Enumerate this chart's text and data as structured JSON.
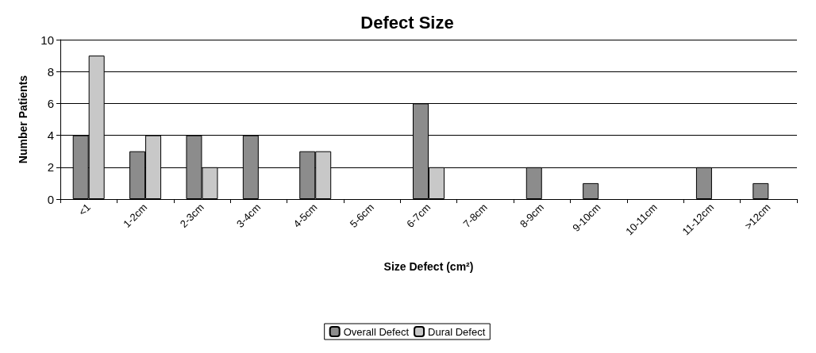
{
  "chart_data": {
    "type": "bar",
    "title": "Defect Size",
    "xlabel": "Size Defect (cm²)",
    "ylabel": "Number Patients",
    "categories": [
      "<1",
      "1-2cm",
      "2-3cm",
      "3-4cm",
      "4-5cm",
      "5-6cm",
      "6-7cm",
      "7-8cm",
      "8-9cm",
      "9-10cm",
      "10-11cm",
      "11-12cm",
      ">12cm"
    ],
    "series": [
      {
        "name": "Overall Defect",
        "color": "#8c8c8c",
        "values": [
          4,
          3,
          4,
          4,
          3,
          null,
          6,
          null,
          2,
          1,
          null,
          2,
          1
        ]
      },
      {
        "name": "Dural Defect",
        "color": "#c8c8c8",
        "values": [
          9,
          4,
          2,
          null,
          3,
          null,
          2,
          null,
          null,
          null,
          null,
          null,
          null
        ]
      }
    ],
    "ylim": [
      0,
      10
    ],
    "yticks": [
      0,
      2,
      4,
      6,
      8,
      10
    ],
    "grid": "y",
    "legend": "bottom"
  }
}
